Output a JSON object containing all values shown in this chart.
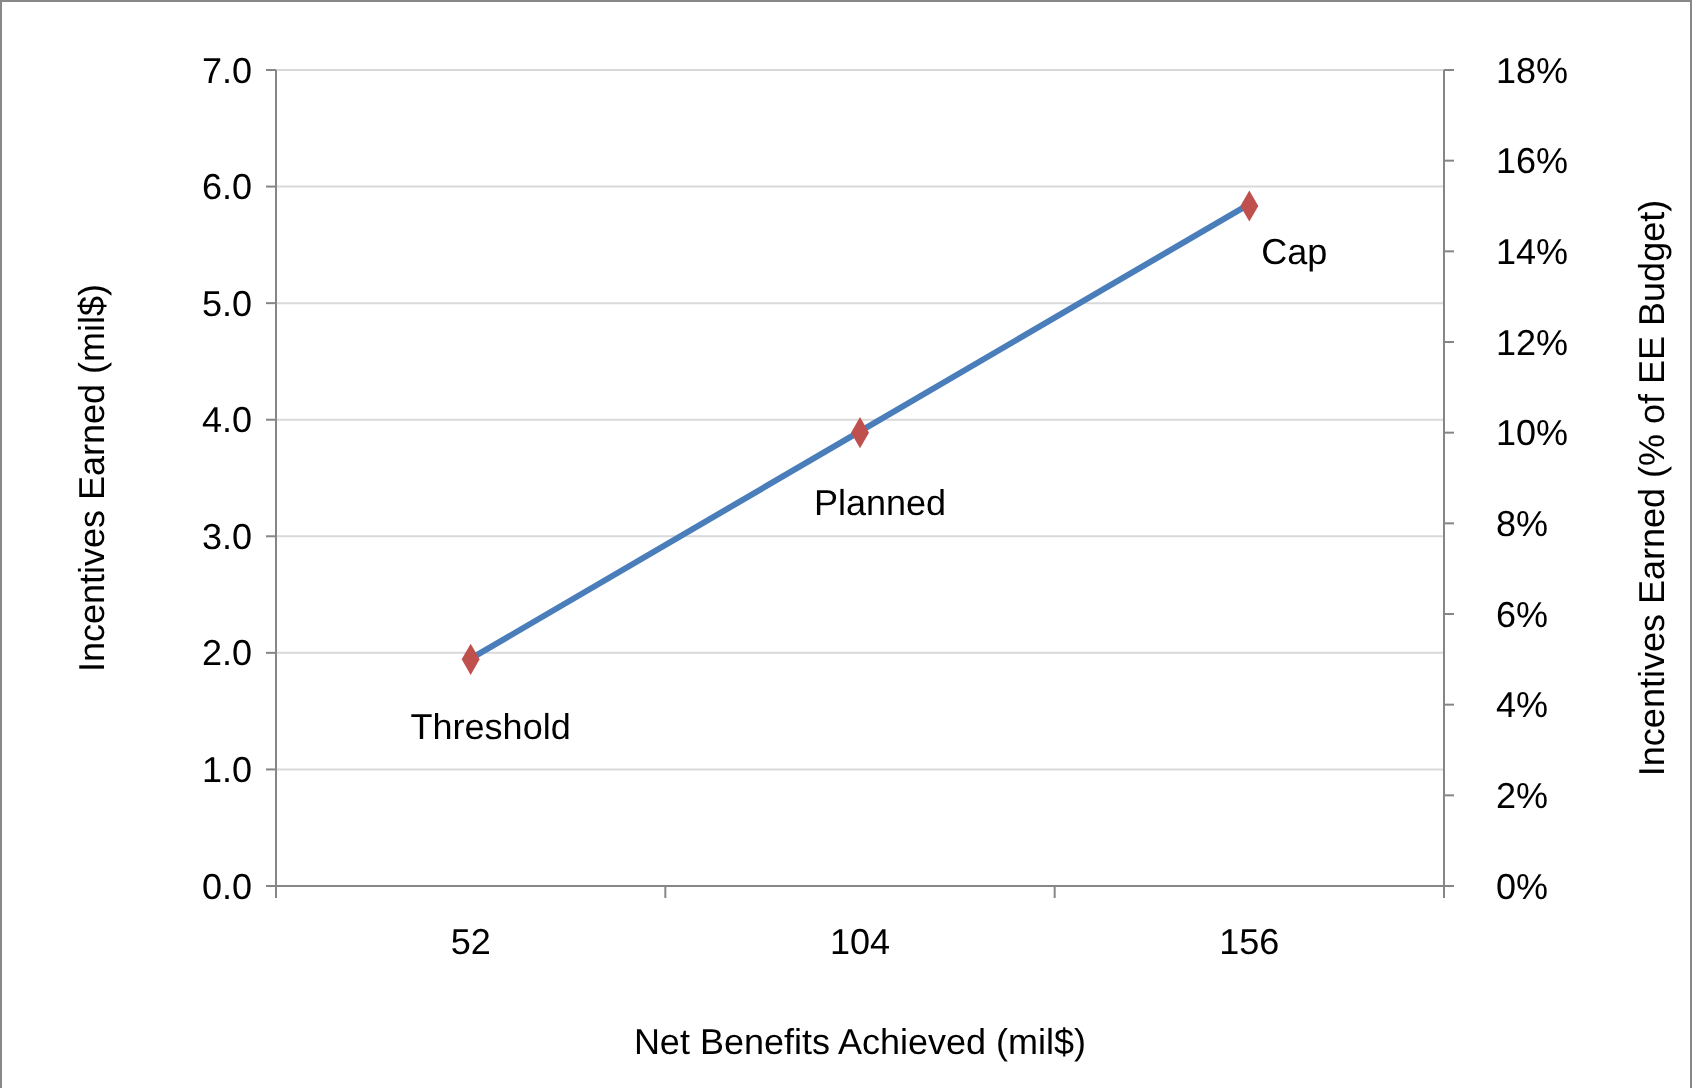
{
  "chart_data": {
    "type": "line",
    "xlabel": "Net Benefits  Achieved (mil$)",
    "ylabel": "Incentives Earned (mil$)",
    "y2label": "Incentives Earned (% of EE Budget)",
    "categories": [
      "52",
      "104",
      "156"
    ],
    "series": [
      {
        "color": "#4a7ebb",
        "values": [
          1.95,
          3.9,
          5.85
        ],
        "marker": "none"
      },
      {
        "type": "scatter",
        "color": "#c0504d",
        "values": [
          5,
          10,
          15
        ],
        "axis": "y2",
        "marker": "diamond"
      }
    ],
    "ylim": [
      0,
      7
    ],
    "yticks": [
      {
        "value": 0,
        "label": "0.0"
      },
      {
        "value": 1,
        "label": "1.0"
      },
      {
        "value": 2,
        "label": "2.0"
      },
      {
        "value": 3,
        "label": "3.0"
      },
      {
        "value": 4,
        "label": "4.0"
      },
      {
        "value": 5,
        "label": "5.0"
      },
      {
        "value": 6,
        "label": "6.0"
      },
      {
        "value": 7,
        "label": "7.0"
      }
    ],
    "y2lim": [
      0,
      18
    ],
    "y2ticks": [
      {
        "value": 0,
        "label": "0%"
      },
      {
        "value": 2,
        "label": "2%"
      },
      {
        "value": 4,
        "label": "4%"
      },
      {
        "value": 6,
        "label": "6%"
      },
      {
        "value": 8,
        "label": "8%"
      },
      {
        "value": 10,
        "label": "10%"
      },
      {
        "value": 12,
        "label": "12%"
      },
      {
        "value": 14,
        "label": "14%"
      },
      {
        "value": 16,
        "label": "16%"
      },
      {
        "value": 18,
        "label": "18%"
      }
    ],
    "grid": "y",
    "annotations": [
      {
        "text": "Threshold",
        "x": "52",
        "y": 1.95
      },
      {
        "text": "Planned",
        "x": "104",
        "y": 3.9
      },
      {
        "text": "Cap",
        "x": "156",
        "y": 5.85
      }
    ]
  }
}
